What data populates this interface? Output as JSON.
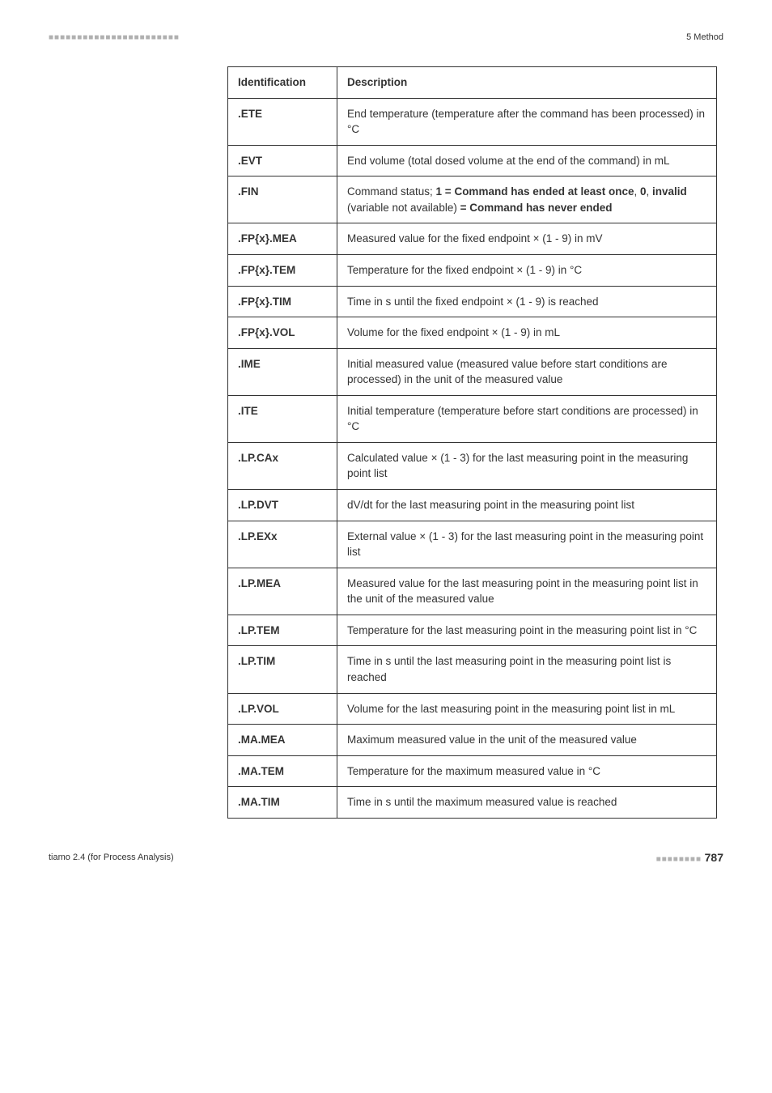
{
  "header": {
    "bars": "■■■■■■■■■■■■■■■■■■■■■■■",
    "section": "5 Method"
  },
  "footer": {
    "left": "tiamo 2.4 (for Process Analysis)",
    "bars": "■■■■■■■■",
    "page": "787"
  },
  "table": {
    "headers": [
      "Identification",
      "Description"
    ],
    "rows": [
      {
        "id": ".ETE",
        "desc": "End temperature (temperature after the command has been processed) in °C"
      },
      {
        "id": ".EVT",
        "desc": "End volume (total dosed volume at the end of the command) in mL"
      },
      {
        "id": ".FIN",
        "desc_parts": {
          "prefix": "Command status; ",
          "bold1": "1 = Command has ended at least once",
          "mid1": ", ",
          "bold2": "0",
          "mid2": ", ",
          "bold3": "invalid",
          "mid3": " (variable not available) ",
          "bold4": "= Command has never ended"
        }
      },
      {
        "id": ".FP{x}.MEA",
        "desc": "Measured value for the fixed endpoint × (1 - 9) in mV"
      },
      {
        "id": ".FP{x}.TEM",
        "desc": "Temperature for the fixed endpoint × (1 - 9) in °C"
      },
      {
        "id": ".FP{x}.TIM",
        "desc": "Time in s until the fixed endpoint × (1 - 9) is reached"
      },
      {
        "id": ".FP{x}.VOL",
        "desc": "Volume for the fixed endpoint × (1 - 9) in mL"
      },
      {
        "id": ".IME",
        "desc": "Initial measured value (measured value before start conditions are processed) in the unit of the measured value"
      },
      {
        "id": ".ITE",
        "desc": "Initial temperature (temperature before start conditions are processed) in °C"
      },
      {
        "id": ".LP.CAx",
        "desc": "Calculated value × (1 - 3) for the last measuring point in the measuring point list"
      },
      {
        "id": ".LP.DVT",
        "desc": "dV/dt for the last measuring point in the measuring point list"
      },
      {
        "id": ".LP.EXx",
        "desc": "External value × (1 - 3) for the last measuring point in the measuring point list"
      },
      {
        "id": ".LP.MEA",
        "desc": "Measured value for the last measuring point in the measuring point list in the unit of the measured value"
      },
      {
        "id": ".LP.TEM",
        "desc": "Temperature for the last measuring point in the measuring point list in °C"
      },
      {
        "id": ".LP.TIM",
        "desc": "Time in s until the last measuring point in the measuring point list is reached"
      },
      {
        "id": ".LP.VOL",
        "desc": "Volume for the last measuring point in the measuring point list in mL"
      },
      {
        "id": ".MA.MEA",
        "desc": "Maximum measured value in the unit of the measured value"
      },
      {
        "id": ".MA.TEM",
        "desc": "Temperature for the maximum measured value in °C"
      },
      {
        "id": ".MA.TIM",
        "desc": "Time in s until the maximum measured value is reached"
      }
    ]
  }
}
